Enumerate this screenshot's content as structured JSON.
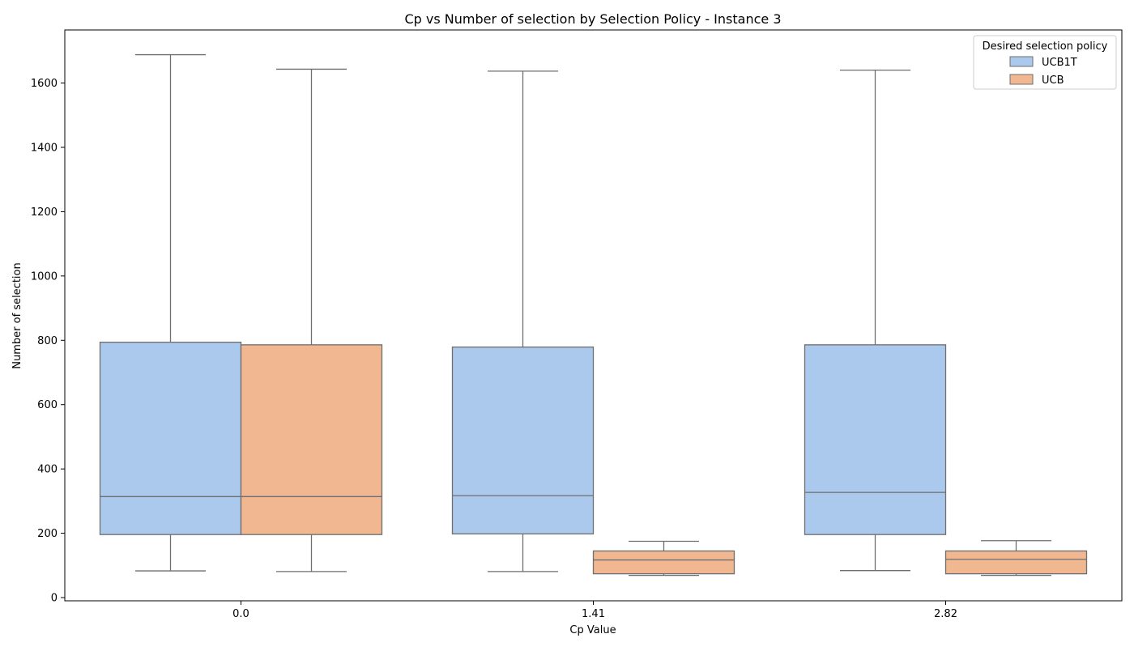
{
  "chart_data": {
    "type": "box",
    "title": "Cp vs Number of selection by Selection Policy - Instance 3",
    "xlabel": "Cp Value",
    "ylabel": "Number of selection",
    "categories": [
      "0.0",
      "1.41",
      "2.82"
    ],
    "ylim": [
      -10,
      1765
    ],
    "yticks": [
      0,
      200,
      400,
      600,
      800,
      1000,
      1200,
      1400,
      1600
    ],
    "grid": false,
    "legend": {
      "title": "Desired selection policy",
      "placement": "top-right"
    },
    "series": [
      {
        "name": "UCB1T",
        "color": "#abc9ec",
        "boxes": [
          {
            "whisker_low": 83,
            "q1": 196,
            "median": 314,
            "q3": 794,
            "whisker_high": 1688
          },
          {
            "whisker_low": 81,
            "q1": 198,
            "median": 317,
            "q3": 779,
            "whisker_high": 1637
          },
          {
            "whisker_low": 84,
            "q1": 196,
            "median": 327,
            "q3": 786,
            "whisker_high": 1640
          }
        ]
      },
      {
        "name": "UCB",
        "color": "#f0b791",
        "boxes": [
          {
            "whisker_low": 81,
            "q1": 196,
            "median": 314,
            "q3": 786,
            "whisker_high": 1643
          },
          {
            "whisker_low": 69,
            "q1": 74,
            "median": 117,
            "q3": 145,
            "whisker_high": 175
          },
          {
            "whisker_low": 69,
            "q1": 74,
            "median": 119,
            "q3": 145,
            "whisker_high": 177
          }
        ]
      }
    ],
    "line_color": "#6e6e6e"
  }
}
